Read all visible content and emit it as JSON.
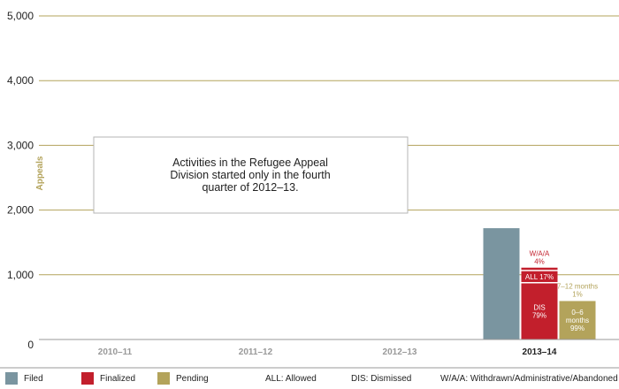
{
  "chart_data": {
    "type": "bar",
    "ylabel": "Appeals",
    "ylim": [
      0,
      5000
    ],
    "yticks": [
      "0",
      "1,000",
      "2,000",
      "3,000",
      "4,000",
      "5,000"
    ],
    "ytick_values": [
      0,
      1000,
      2000,
      3000,
      4000,
      5000
    ],
    "grid": true,
    "categories": [
      "2010–11",
      "2011–12",
      "2012–13",
      "2013–14"
    ],
    "series": [
      {
        "name": "Filed",
        "color": "#7a95a0",
        "values": [
          0,
          0,
          0,
          1720
        ]
      },
      {
        "name": "Finalized",
        "color": "#c21f2c",
        "values": [
          0,
          0,
          0,
          1110
        ],
        "breakdown": [
          {
            "label": "DIS",
            "pct": "79%",
            "share": 0.79
          },
          {
            "label": "ALL",
            "pct": "17%",
            "share": 0.17
          },
          {
            "label": "W/A/A",
            "pct": "4%",
            "share": 0.04
          }
        ]
      },
      {
        "name": "Pending",
        "color": "#b3a35b",
        "values": [
          0,
          0,
          0,
          610
        ],
        "breakdown": [
          {
            "label": "0–6 months",
            "pct": "99%",
            "share": 0.99
          },
          {
            "label": "7–12 months",
            "pct": "1%",
            "share": 0.01
          }
        ]
      }
    ],
    "annotation": "Activities in the Refugee Appeal Division started only in the fourth quarter of 2012–13.",
    "legend_position": "bottom",
    "legend_notes": [
      "ALL: Allowed",
      "DIS: Dismissed",
      "W/A/A: Withdrawn/Administrative/Abandoned"
    ]
  }
}
